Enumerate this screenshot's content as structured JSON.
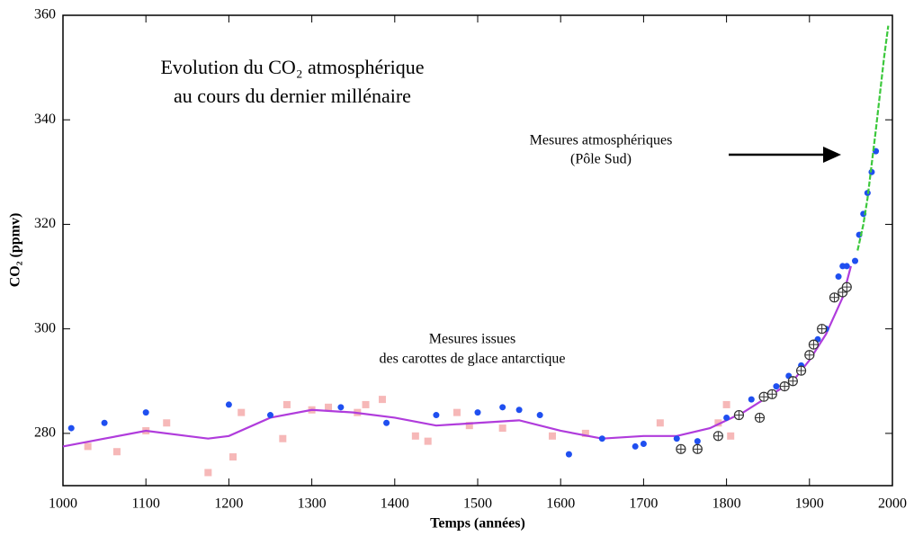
{
  "chart_data": {
    "type": "scatter",
    "title": [
      "Evolution du CO₂ atmosphérique",
      "au cours du dernier millénaire"
    ],
    "xlabel": "Temps (années)",
    "ylabel": "CO₂ (ppmv)",
    "annotations": [
      [
        "Mesures atmosphériques",
        "(Pôle Sud)"
      ],
      [
        "Mesures issues",
        "des carottes de glace antarctique"
      ]
    ],
    "xlim": [
      1000,
      2000
    ],
    "xticks": [
      1000,
      1100,
      1200,
      1300,
      1400,
      1500,
      1600,
      1700,
      1800,
      1900,
      2000
    ],
    "ylim": [
      270,
      360
    ],
    "yticks": [
      280,
      300,
      320,
      340,
      360
    ],
    "series": [
      {
        "kind": "points",
        "marker": "square",
        "color": "#f4a6a6",
        "x": [
          1030,
          1065,
          1100,
          1125,
          1175,
          1205,
          1215,
          1265,
          1270,
          1300,
          1320,
          1355,
          1365,
          1385,
          1425,
          1440,
          1475,
          1490,
          1530,
          1590,
          1630,
          1720,
          1790,
          1800,
          1805
        ],
        "values": [
          277.5,
          276.5,
          280.5,
          282,
          272.5,
          275.5,
          284,
          279,
          285.5,
          284.5,
          285,
          284,
          285.5,
          286.5,
          279.5,
          278.5,
          284,
          281.5,
          281,
          279.5,
          280,
          282,
          282,
          285.5,
          279.5
        ]
      },
      {
        "kind": "line",
        "color": "#b03cdc",
        "x": [
          1000,
          1050,
          1100,
          1150,
          1175,
          1200,
          1250,
          1300,
          1350,
          1400,
          1450,
          1500,
          1550,
          1600,
          1650,
          1700,
          1740,
          1780,
          1820,
          1850,
          1880,
          1900,
          1920,
          1940,
          1950
        ],
        "values": [
          277.5,
          279,
          280.5,
          279.5,
          279,
          279.5,
          283,
          284.5,
          284,
          283,
          281.5,
          282,
          282.5,
          280.5,
          279,
          279.5,
          279.5,
          281,
          284,
          287,
          290,
          294,
          299,
          306,
          312
        ]
      },
      {
        "kind": "points",
        "marker": "circle",
        "color": "#1f4ff0",
        "x": [
          1010,
          1050,
          1100,
          1200,
          1250,
          1335,
          1390,
          1450,
          1500,
          1530,
          1550,
          1575,
          1610,
          1650,
          1690,
          1700,
          1740,
          1765,
          1800,
          1830,
          1845,
          1860,
          1875,
          1890,
          1900,
          1910,
          1920,
          1930,
          1935,
          1940,
          1945,
          1955,
          1960,
          1965,
          1970,
          1975,
          1980
        ],
        "values": [
          281,
          282,
          284,
          285.5,
          283.5,
          285,
          282,
          283.5,
          284,
          285,
          284.5,
          283.5,
          276,
          279,
          277.5,
          278,
          279,
          278.5,
          283,
          286.5,
          287,
          289,
          291,
          293,
          295,
          298,
          300,
          306,
          310,
          312,
          312,
          313,
          318,
          322,
          326,
          330,
          334
        ]
      },
      {
        "kind": "points",
        "marker": "crosscircle",
        "color": "#333333",
        "x": [
          1745,
          1765,
          1790,
          1815,
          1840,
          1845,
          1855,
          1870,
          1880,
          1890,
          1900,
          1905,
          1915,
          1930,
          1940,
          1945
        ],
        "values": [
          277,
          277,
          279.5,
          283.5,
          283,
          287,
          287.5,
          289,
          290,
          292,
          295,
          297,
          300,
          306,
          307,
          308
        ]
      },
      {
        "kind": "line",
        "color": "#3cc83c",
        "dashed": true,
        "x": [
          1958,
          1965,
          1970,
          1980,
          1990,
          1995
        ],
        "values": [
          315,
          320,
          325,
          338,
          352,
          358
        ]
      }
    ]
  }
}
